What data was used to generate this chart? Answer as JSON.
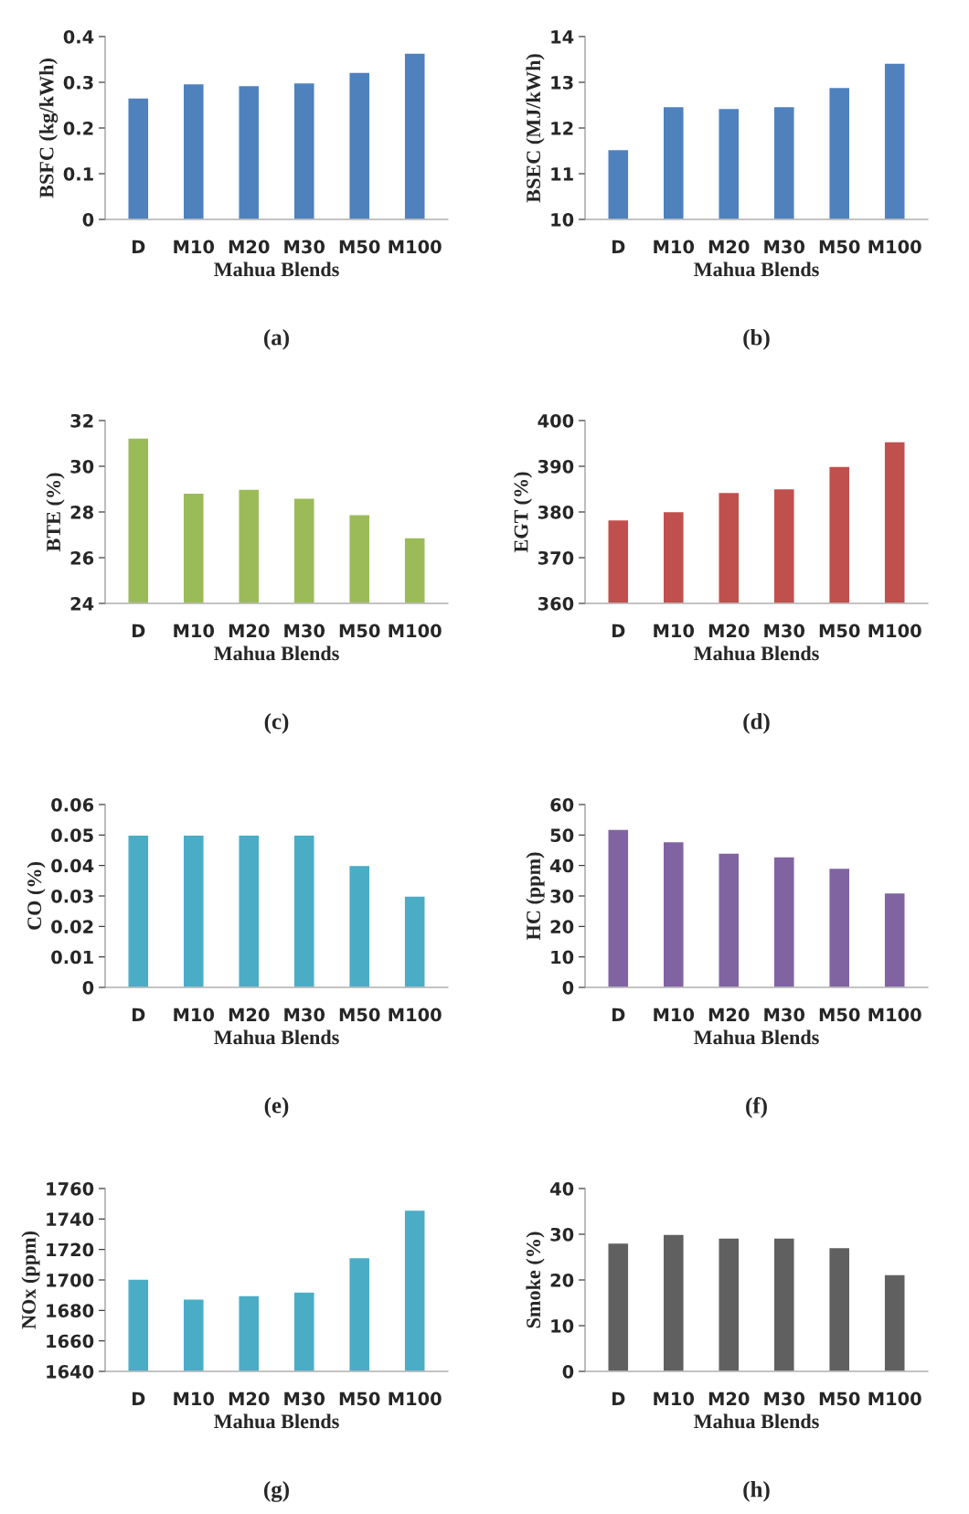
{
  "chart_data": [
    {
      "type": "bar",
      "categories": [
        "D",
        "M10",
        "M20",
        "M30",
        "M50",
        "M100"
      ],
      "values": [
        0.266,
        0.297,
        0.293,
        0.299,
        0.322,
        0.364
      ],
      "color": "#4f81bd",
      "ylabel": "BSFC (kg/kWh)",
      "xlabel": "Mahua Blends",
      "ylim": [
        0,
        0.4
      ],
      "yticks": [
        0,
        0.1,
        0.2,
        0.3,
        0.4
      ],
      "annotations": [
        "(a)"
      ],
      "grid": false,
      "legend": false
    },
    {
      "type": "bar",
      "categories": [
        "D",
        "M10",
        "M20",
        "M30",
        "M50",
        "M100"
      ],
      "values": [
        11.53,
        12.47,
        12.43,
        12.47,
        12.89,
        13.42
      ],
      "color": "#4f81bd",
      "ylabel": "BSEC (MJ/kWh)",
      "xlabel": "Mahua Blends",
      "ylim": [
        10,
        14
      ],
      "yticks": [
        10,
        11,
        12,
        13,
        14
      ],
      "annotations": [
        "(b)"
      ],
      "grid": false,
      "legend": false
    },
    {
      "type": "bar",
      "categories": [
        "D",
        "M10",
        "M20",
        "M30",
        "M50",
        "M100"
      ],
      "values": [
        31.24,
        28.83,
        29.0,
        28.61,
        27.89,
        26.88
      ],
      "color": "#9bbb59",
      "ylabel": "BTE (%)",
      "xlabel": "Mahua Blends",
      "ylim": [
        24,
        32
      ],
      "yticks": [
        24,
        26,
        28,
        30,
        32
      ],
      "annotations": [
        "(c)"
      ],
      "grid": false,
      "legend": false
    },
    {
      "type": "bar",
      "categories": [
        "D",
        "M10",
        "M20",
        "M30",
        "M50",
        "M100"
      ],
      "values": [
        378.3,
        380.1,
        384.3,
        385.1,
        390.0,
        395.4
      ],
      "color": "#c0504d",
      "ylabel": "EGT (%)",
      "xlabel": "Mahua Blends",
      "ylim": [
        360,
        400
      ],
      "yticks": [
        360,
        370,
        380,
        390,
        400
      ],
      "annotations": [
        "(d)"
      ],
      "grid": false,
      "legend": false
    },
    {
      "type": "bar",
      "categories": [
        "D",
        "M10",
        "M20",
        "M30",
        "M50",
        "M100"
      ],
      "values": [
        0.05,
        0.05,
        0.05,
        0.05,
        0.04,
        0.03
      ],
      "color": "#4bacc6",
      "ylabel": "CO (%)",
      "xlabel": "Mahua Blends",
      "ylim": [
        0,
        0.06
      ],
      "yticks": [
        0,
        0.01,
        0.02,
        0.03,
        0.04,
        0.05,
        0.06
      ],
      "annotations": [
        "(e)"
      ],
      "grid": false,
      "legend": false
    },
    {
      "type": "bar",
      "categories": [
        "D",
        "M10",
        "M20",
        "M30",
        "M50",
        "M100"
      ],
      "values": [
        51.9,
        47.8,
        44.1,
        42.9,
        39.1,
        31.0
      ],
      "color": "#8064a2",
      "ylabel": "HC (ppm)",
      "xlabel": "Mahua Blends",
      "ylim": [
        0,
        60
      ],
      "yticks": [
        0,
        10,
        20,
        30,
        40,
        50,
        60
      ],
      "annotations": [
        "(f)"
      ],
      "grid": false,
      "legend": false
    },
    {
      "type": "bar",
      "categories": [
        "D",
        "M10",
        "M20",
        "M30",
        "M50",
        "M100"
      ],
      "values": [
        1700.6,
        1687.5,
        1689.8,
        1692.1,
        1714.7,
        1745.8
      ],
      "color": "#4bacc6",
      "ylabel": "NOx (ppm)",
      "xlabel": "Mahua Blends",
      "ylim": [
        1640,
        1760
      ],
      "yticks": [
        1640,
        1660,
        1680,
        1700,
        1720,
        1740,
        1760
      ],
      "annotations": [
        "(g)"
      ],
      "grid": false,
      "legend": false
    },
    {
      "type": "bar",
      "categories": [
        "D",
        "M10",
        "M20",
        "M30",
        "M50",
        "M100"
      ],
      "values": [
        28.1,
        30.0,
        29.2,
        29.2,
        27.1,
        21.2
      ],
      "color": "#606060",
      "ylabel": "Smoke (%)",
      "xlabel": "Mahua Blends",
      "ylim": [
        0,
        40
      ],
      "yticks": [
        0,
        10,
        20,
        30,
        40
      ],
      "annotations": [
        "(h)"
      ],
      "grid": false,
      "legend": false
    }
  ]
}
